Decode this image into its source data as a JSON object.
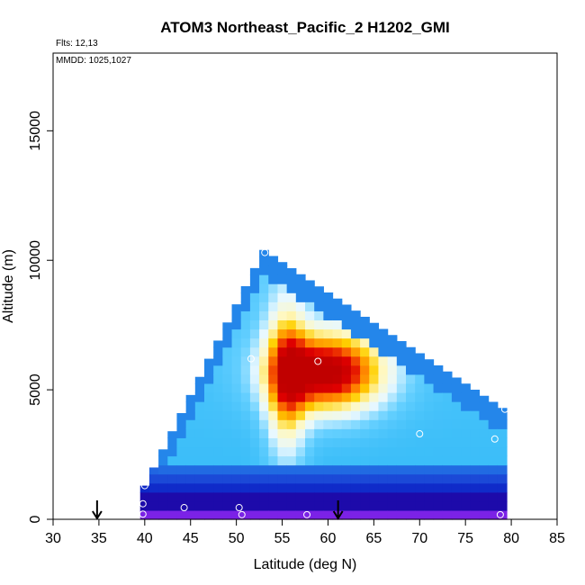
{
  "chart_data": {
    "type": "heatmap",
    "title": "ATOM3 Northeast_Pacific_2 H1202_GMI",
    "annotations": [
      "Flts: 12,13",
      "MMDD: 1025,1027"
    ],
    "xlabel": "Latitude (deg N)",
    "ylabel": "Altitude (m)",
    "xlim": [
      30,
      85
    ],
    "ylim": [
      0,
      18000
    ],
    "xticks": [
      "30",
      "35",
      "40",
      "45",
      "50",
      "55",
      "60",
      "65",
      "70",
      "75",
      "80",
      "85"
    ],
    "yticks": [
      "0",
      "5000",
      "10000",
      "15000"
    ],
    "grid": false,
    "legend": "none",
    "colormap": [
      "#7b22e6",
      "#2a0fa6",
      "#0000b4",
      "#1e52dc",
      "#29b6f6",
      "#66d0ff",
      "#e8f8ff",
      "#fff8c0",
      "#ffd000",
      "#ff7a00",
      "#e00000",
      "#c00000"
    ],
    "field_description_values": {
      "domain_top_m": [
        [
          40,
          1300
        ],
        [
          53,
          10400
        ],
        [
          79,
          4300
        ]
      ],
      "core_center": [
        60,
        5700
      ]
    },
    "sample_points": [
      {
        "lat": 39.8,
        "alt": 200
      },
      {
        "lat": 39.8,
        "alt": 600
      },
      {
        "lat": 40.0,
        "alt": 1300
      },
      {
        "lat": 44.3,
        "alt": 450
      },
      {
        "lat": 50.3,
        "alt": 450
      },
      {
        "lat": 50.6,
        "alt": 180
      },
      {
        "lat": 51.6,
        "alt": 6200
      },
      {
        "lat": 53.1,
        "alt": 10300
      },
      {
        "lat": 57.7,
        "alt": 180
      },
      {
        "lat": 58.9,
        "alt": 6100
      },
      {
        "lat": 70.0,
        "alt": 3300
      },
      {
        "lat": 78.2,
        "alt": 3100
      },
      {
        "lat": 78.8,
        "alt": 180
      },
      {
        "lat": 79.3,
        "alt": 4250
      }
    ],
    "arrows_lat": [
      34.8,
      61.1
    ]
  }
}
